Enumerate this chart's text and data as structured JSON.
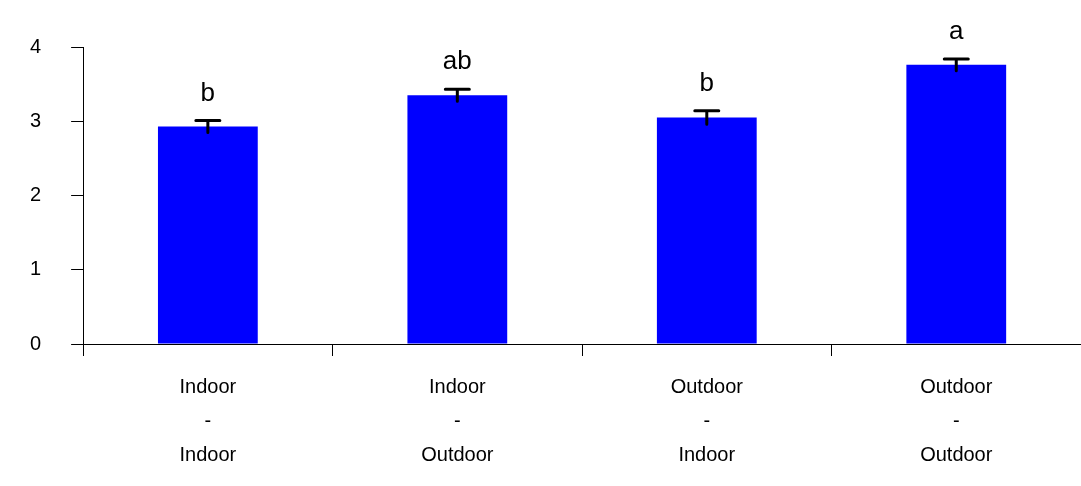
{
  "chart_data": {
    "type": "bar",
    "categories": [
      "Indoor\n-\nIndoor",
      "Indoor\n-\nOutdoor",
      "Outdoor\n-\nIndoor",
      "Outdoor\n-\nOutdoor"
    ],
    "values": [
      2.93,
      3.35,
      3.05,
      3.76
    ],
    "errors": [
      0.08,
      0.08,
      0.09,
      0.08
    ],
    "color": "#0000ff",
    "ylim": [
      0,
      4
    ],
    "yticks": [
      0,
      1,
      2,
      3,
      4
    ],
    "grid": false,
    "legend": false,
    "annotations": [
      {
        "text": "b",
        "x": "Indoor\n-\nIndoor",
        "y": 3.01
      },
      {
        "text": "ab",
        "x": "Indoor\n-\nOutdoor",
        "y": 3.43
      },
      {
        "text": "b",
        "x": "Outdoor\n-\nIndoor",
        "y": 3.14
      },
      {
        "text": "a",
        "x": "Outdoor\n-\nOutdoor",
        "y": 3.84
      }
    ]
  }
}
